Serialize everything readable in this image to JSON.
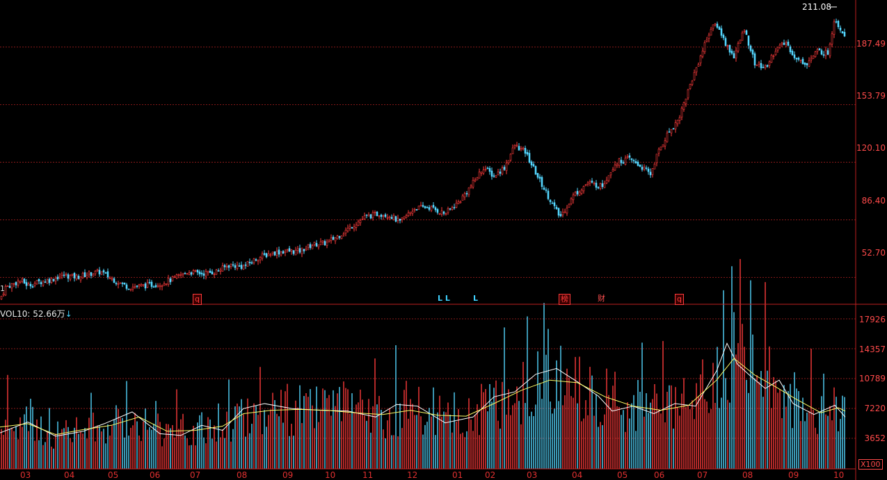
{
  "price_axis": {
    "ticks": [
      "187.49",
      "153.79",
      "120.10",
      "86.40",
      "52.70"
    ],
    "max_label": "211.08"
  },
  "volume_axis": {
    "ticks": [
      "17926",
      "14357",
      "10789",
      "7220",
      "3652"
    ],
    "unit": "X100"
  },
  "vol_indicator": {
    "label": "VOL10: 52.66万",
    "arrow": "↓"
  },
  "months": [
    "03",
    "04",
    "05",
    "06",
    "07",
    "08",
    "09",
    "10",
    "11",
    "12",
    "01",
    "02",
    "03",
    "04",
    "05",
    "06",
    "07",
    "08",
    "09",
    "10"
  ],
  "markers": [
    {
      "text": "q",
      "style": "boxed"
    },
    {
      "text": "L L",
      "style": "cyan"
    },
    {
      "text": "L",
      "style": "cyan"
    },
    {
      "text": "榜",
      "style": "boxed"
    },
    {
      "text": "财",
      "style": "plain"
    },
    {
      "text": "q",
      "style": "boxed"
    }
  ],
  "left_edge_label": "1",
  "colors": {
    "up": "#ff3b3b",
    "down": "#54d7ff",
    "ma_fast": "#ffffff",
    "ma_slow": "#ffff66",
    "grid": "#8a1a1a"
  },
  "chart_data": [
    {
      "type": "candlestick",
      "x_months": [
        "03",
        "04",
        "05",
        "06",
        "07",
        "08",
        "09",
        "10",
        "11",
        "12",
        "01",
        "02",
        "03",
        "04",
        "05",
        "06",
        "07",
        "08",
        "09",
        "10"
      ],
      "ylim": [
        37,
        215
      ],
      "y_ticks": [
        52.7,
        86.4,
        120.1,
        153.79,
        187.49
      ],
      "max_price": 211.08,
      "close_path": [
        [
          0,
          40
        ],
        [
          8,
          47
        ],
        [
          20,
          49
        ],
        [
          30,
          51
        ],
        [
          40,
          48
        ],
        [
          55,
          50
        ],
        [
          70,
          51
        ],
        [
          90,
          54
        ],
        [
          110,
          53
        ],
        [
          130,
          55
        ],
        [
          145,
          56
        ],
        [
          160,
          52
        ],
        [
          185,
          47
        ],
        [
          210,
          48
        ],
        [
          230,
          49
        ],
        [
          250,
          52
        ],
        [
          270,
          56
        ],
        [
          290,
          55
        ],
        [
          310,
          56
        ],
        [
          330,
          60
        ],
        [
          350,
          59
        ],
        [
          370,
          64
        ],
        [
          390,
          67
        ],
        [
          410,
          68
        ],
        [
          430,
          68
        ],
        [
          450,
          72
        ],
        [
          470,
          73
        ],
        [
          490,
          78
        ],
        [
          510,
          84
        ],
        [
          525,
          88
        ],
        [
          545,
          90
        ],
        [
          560,
          89
        ],
        [
          575,
          85
        ],
        [
          595,
          93
        ],
        [
          615,
          94
        ],
        [
          640,
          90
        ],
        [
          660,
          97
        ],
        [
          680,
          108
        ],
        [
          695,
          117
        ],
        [
          710,
          112
        ],
        [
          725,
          117
        ],
        [
          740,
          130
        ],
        [
          755,
          126
        ],
        [
          775,
          110
        ],
        [
          795,
          95
        ],
        [
          805,
          88
        ],
        [
          825,
          101
        ],
        [
          845,
          108
        ],
        [
          865,
          106
        ],
        [
          885,
          120
        ],
        [
          905,
          122
        ],
        [
          920,
          118
        ],
        [
          935,
          113
        ],
        [
          945,
          125
        ],
        [
          960,
          137
        ],
        [
          975,
          145
        ],
        [
          990,
          163
        ],
        [
          1005,
          180
        ],
        [
          1020,
          197
        ],
        [
          1030,
          201
        ],
        [
          1045,
          188
        ],
        [
          1055,
          182
        ],
        [
          1070,
          198
        ],
        [
          1085,
          178
        ],
        [
          1100,
          175
        ],
        [
          1115,
          186
        ],
        [
          1130,
          190
        ],
        [
          1145,
          180
        ],
        [
          1160,
          178
        ],
        [
          1175,
          185
        ],
        [
          1190,
          184
        ],
        [
          1200,
          205
        ],
        [
          1208,
          198
        ],
        [
          1215,
          195
        ]
      ]
    },
    {
      "type": "bar",
      "series": [
        {
          "values_desc": "daily volume"
        }
      ],
      "ylim": [
        0,
        19000
      ],
      "y_ticks": [
        3652,
        7220,
        10789,
        14357,
        17926
      ],
      "ma_fast_path": [
        [
          0,
          4300
        ],
        [
          40,
          5600
        ],
        [
          80,
          3900
        ],
        [
          120,
          4500
        ],
        [
          150,
          5400
        ],
        [
          190,
          6800
        ],
        [
          230,
          4200
        ],
        [
          260,
          4000
        ],
        [
          290,
          5200
        ],
        [
          320,
          4600
        ],
        [
          350,
          7200
        ],
        [
          380,
          7800
        ],
        [
          420,
          7200
        ],
        [
          460,
          7000
        ],
        [
          500,
          6900
        ],
        [
          540,
          6200
        ],
        [
          570,
          7700
        ],
        [
          600,
          7500
        ],
        [
          640,
          5500
        ],
        [
          680,
          6200
        ],
        [
          710,
          8600
        ],
        [
          740,
          9200
        ],
        [
          770,
          11300
        ],
        [
          800,
          12000
        ],
        [
          830,
          10400
        ],
        [
          860,
          8700
        ],
        [
          880,
          6900
        ],
        [
          910,
          7500
        ],
        [
          940,
          6600
        ],
        [
          970,
          7800
        ],
        [
          1000,
          7500
        ],
        [
          1030,
          11700
        ],
        [
          1045,
          15000
        ],
        [
          1060,
          12500
        ],
        [
          1080,
          11000
        ],
        [
          1100,
          9600
        ],
        [
          1120,
          10600
        ],
        [
          1140,
          7800
        ],
        [
          1170,
          6500
        ],
        [
          1200,
          7600
        ],
        [
          1215,
          6200
        ]
      ],
      "ma_slow_path": [
        [
          0,
          5000
        ],
        [
          40,
          5400
        ],
        [
          80,
          4100
        ],
        [
          120,
          4700
        ],
        [
          160,
          5200
        ],
        [
          200,
          6200
        ],
        [
          240,
          4500
        ],
        [
          280,
          4600
        ],
        [
          320,
          5100
        ],
        [
          350,
          6600
        ],
        [
          390,
          7000
        ],
        [
          430,
          7100
        ],
        [
          470,
          7000
        ],
        [
          510,
          6700
        ],
        [
          550,
          6500
        ],
        [
          590,
          7000
        ],
        [
          630,
          6400
        ],
        [
          670,
          6300
        ],
        [
          710,
          7800
        ],
        [
          750,
          9400
        ],
        [
          790,
          10600
        ],
        [
          830,
          10300
        ],
        [
          870,
          8600
        ],
        [
          910,
          7500
        ],
        [
          950,
          7000
        ],
        [
          990,
          7600
        ],
        [
          1030,
          10600
        ],
        [
          1055,
          13200
        ],
        [
          1085,
          11200
        ],
        [
          1115,
          9800
        ],
        [
          1145,
          8300
        ],
        [
          1180,
          6700
        ],
        [
          1205,
          7300
        ],
        [
          1215,
          6900
        ]
      ]
    }
  ]
}
